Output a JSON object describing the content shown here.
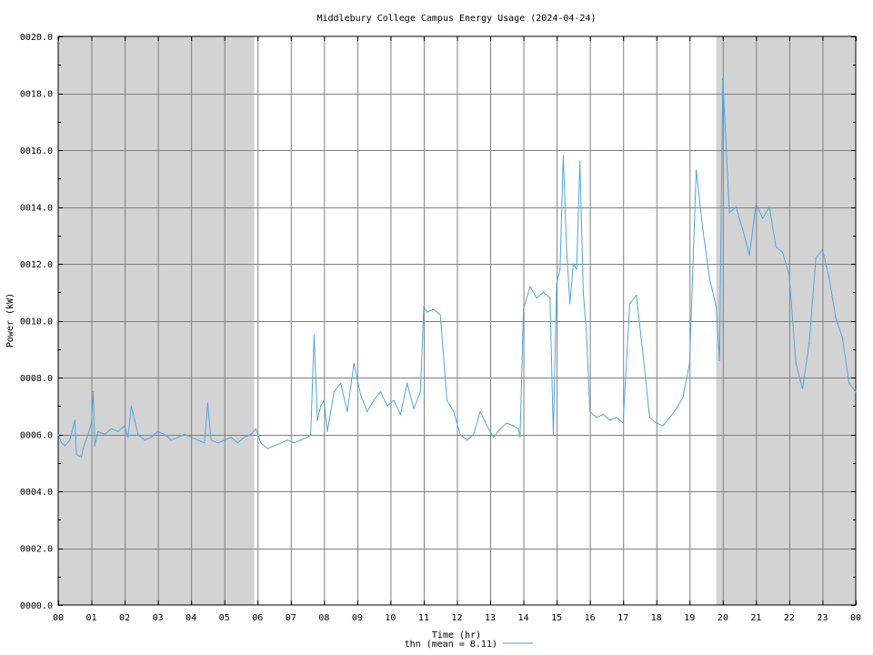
{
  "chart_data": {
    "type": "line",
    "title": "Middlebury College Campus Energy Usage (2024-04-24)",
    "xlabel": "Time (hr)",
    "ylabel": "Power (kW)",
    "xlim": [
      0,
      24
    ],
    "ylim": [
      0,
      20
    ],
    "x_tick_labels": [
      "00",
      "01",
      "02",
      "03",
      "04",
      "05",
      "06",
      "07",
      "08",
      "09",
      "10",
      "11",
      "12",
      "13",
      "14",
      "15",
      "16",
      "17",
      "18",
      "19",
      "20",
      "21",
      "22",
      "23",
      "00"
    ],
    "y_tick_labels": [
      "0000.0",
      "0002.0",
      "0004.0",
      "0006.0",
      "0008.0",
      "0010.0",
      "0012.0",
      "0014.0",
      "0016.0",
      "0018.0",
      "0020.0"
    ],
    "grid": true,
    "legend_position": "bottom-center",
    "shaded_ranges": [
      [
        0,
        5.9
      ],
      [
        19.8,
        24
      ]
    ],
    "colors": {
      "series": "#4da6e0",
      "shade": "#d3d3d3",
      "grid": "#808080"
    },
    "series": [
      {
        "name": "thn (mean = 8.11)",
        "x": [
          0,
          0.1,
          0.2,
          0.35,
          0.5,
          0.55,
          0.7,
          0.75,
          0.9,
          1.0,
          1.05,
          1.1,
          1.2,
          1.4,
          1.6,
          1.8,
          2.0,
          2.1,
          2.2,
          2.4,
          2.6,
          2.8,
          3.0,
          3.2,
          3.4,
          3.6,
          3.8,
          4.0,
          4.2,
          4.4,
          4.5,
          4.6,
          4.8,
          5.0,
          5.2,
          5.4,
          5.6,
          5.8,
          5.95,
          6.1,
          6.3,
          6.5,
          6.7,
          6.9,
          7.1,
          7.3,
          7.5,
          7.6,
          7.7,
          7.8,
          7.9,
          8.0,
          8.1,
          8.3,
          8.5,
          8.7,
          8.9,
          9.1,
          9.3,
          9.5,
          9.7,
          9.9,
          10.1,
          10.3,
          10.5,
          10.7,
          10.9,
          11.0,
          11.1,
          11.3,
          11.5,
          11.7,
          11.9,
          12.1,
          12.3,
          12.5,
          12.7,
          12.9,
          13.1,
          13.3,
          13.5,
          13.7,
          13.85,
          13.9,
          14.0,
          14.2,
          14.4,
          14.6,
          14.8,
          14.9,
          15.0,
          15.1,
          15.2,
          15.3,
          15.4,
          15.5,
          15.6,
          15.7,
          15.8,
          15.9,
          16.0,
          16.2,
          16.4,
          16.6,
          16.8,
          17.0,
          17.2,
          17.4,
          17.6,
          17.8,
          18.0,
          18.2,
          18.4,
          18.6,
          18.8,
          19.0,
          19.2,
          19.4,
          19.6,
          19.8,
          19.9,
          20.0,
          20.2,
          20.4,
          20.6,
          20.8,
          21.0,
          21.2,
          21.4,
          21.6,
          21.8,
          22.0,
          22.2,
          22.4,
          22.6,
          22.8,
          23.0,
          23.2,
          23.4,
          23.6,
          23.8,
          24.0
        ],
        "y": [
          6.0,
          5.7,
          5.6,
          5.8,
          6.5,
          5.3,
          5.2,
          5.5,
          6.0,
          6.4,
          7.5,
          5.6,
          6.1,
          6.0,
          6.2,
          6.1,
          6.3,
          5.9,
          7.0,
          6.0,
          5.8,
          5.9,
          6.1,
          6.0,
          5.8,
          5.9,
          6.0,
          5.9,
          5.8,
          5.7,
          7.1,
          5.8,
          5.7,
          5.8,
          5.9,
          5.7,
          5.9,
          6.0,
          6.2,
          5.7,
          5.5,
          5.6,
          5.7,
          5.8,
          5.7,
          5.8,
          5.9,
          6.0,
          9.5,
          6.5,
          7.0,
          7.2,
          6.1,
          7.5,
          7.8,
          6.8,
          8.5,
          7.4,
          6.8,
          7.2,
          7.5,
          7.0,
          7.2,
          6.7,
          7.8,
          6.9,
          7.5,
          10.5,
          10.3,
          10.4,
          10.2,
          7.2,
          6.8,
          6.0,
          5.8,
          6.0,
          6.8,
          6.3,
          5.9,
          6.2,
          6.4,
          6.3,
          6.2,
          5.9,
          10.4,
          11.2,
          10.8,
          11.0,
          10.8,
          6.0,
          11.3,
          11.8,
          15.8,
          12.5,
          10.6,
          12.0,
          11.8,
          15.6,
          11.0,
          9.5,
          6.8,
          6.6,
          6.7,
          6.5,
          6.6,
          6.4,
          10.6,
          10.9,
          8.8,
          6.6,
          6.4,
          6.3,
          6.6,
          6.9,
          7.3,
          8.5,
          15.3,
          13.2,
          11.5,
          10.5,
          8.6,
          18.5,
          13.8,
          14.0,
          13.2,
          12.3,
          14.1,
          13.6,
          14.0,
          12.6,
          12.4,
          11.6,
          8.5,
          7.6,
          9.2,
          12.2,
          12.5,
          11.5,
          10.1,
          9.4,
          7.8,
          7.5
        ]
      }
    ]
  }
}
